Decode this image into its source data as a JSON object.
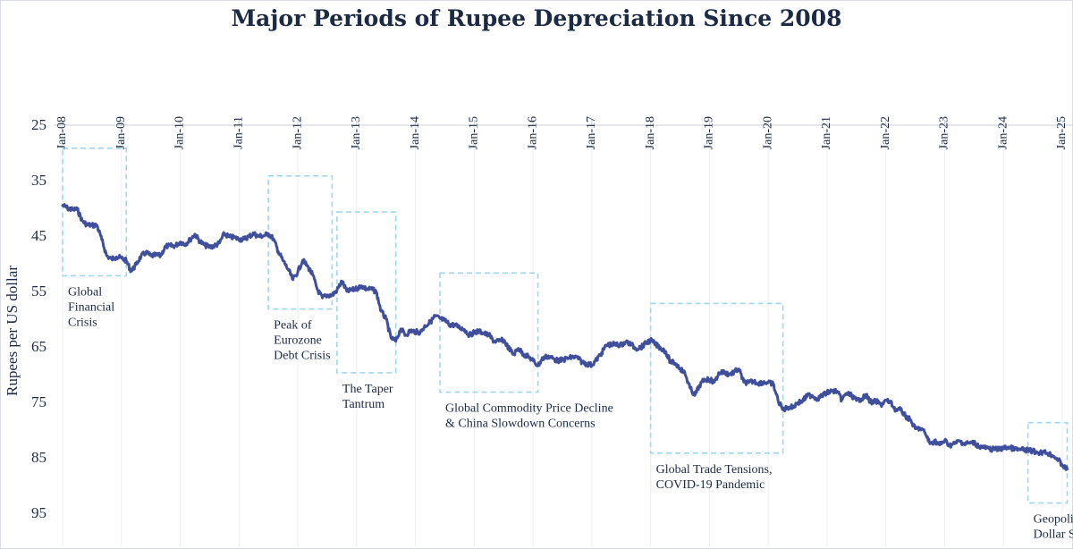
{
  "chart_data": {
    "type": "line",
    "title": "Major Periods of Rupee Depreciation Since 2008",
    "xlabel": "",
    "ylabel": "Rupees per US dollar",
    "x_ticks": [
      "Jan-08",
      "Jan-09",
      "Jan-10",
      "Jan-11",
      "Jan-12",
      "Jan-13",
      "Jan-14",
      "Jan-15",
      "Jan-16",
      "Jan-17",
      "Jan-18",
      "Jan-19",
      "Jan-20",
      "Jan-21",
      "Jan-22",
      "Jan-23",
      "Jan-24",
      "Jan-25"
    ],
    "x_axis_position": "top",
    "y_ticks": [
      25,
      35,
      45,
      55,
      65,
      75,
      85,
      95
    ],
    "ylim": [
      25,
      95
    ],
    "y_inverted": true,
    "grid": "vertical",
    "line_color": "#3f4f9c",
    "box_color": "#9fd7f0",
    "series": [
      {
        "values": [
          [
            "2008-01",
            39.3
          ],
          [
            "2008-02",
            39.8
          ],
          [
            "2008-03",
            40.1
          ],
          [
            "2008-04",
            40.0
          ],
          [
            "2008-05",
            42.1
          ],
          [
            "2008-06",
            42.8
          ],
          [
            "2008-07",
            42.9
          ],
          [
            "2008-08",
            42.9
          ],
          [
            "2008-09",
            45.5
          ],
          [
            "2008-10",
            48.4
          ],
          [
            "2008-11",
            49.0
          ],
          [
            "2008-12",
            48.6
          ],
          [
            "2009-01",
            48.8
          ],
          [
            "2009-02",
            49.3
          ],
          [
            "2009-03",
            51.2
          ],
          [
            "2009-04",
            50.0
          ],
          [
            "2009-05",
            48.5
          ],
          [
            "2009-06",
            47.8
          ],
          [
            "2009-07",
            48.4
          ],
          [
            "2009-08",
            48.3
          ],
          [
            "2009-09",
            48.4
          ],
          [
            "2009-10",
            46.7
          ],
          [
            "2009-11",
            46.6
          ],
          [
            "2009-12",
            46.6
          ],
          [
            "2010-01",
            45.9
          ],
          [
            "2010-02",
            46.3
          ],
          [
            "2010-03",
            45.5
          ],
          [
            "2010-04",
            44.5
          ],
          [
            "2010-05",
            45.8
          ],
          [
            "2010-06",
            46.5
          ],
          [
            "2010-07",
            46.8
          ],
          [
            "2010-08",
            46.6
          ],
          [
            "2010-09",
            46.1
          ],
          [
            "2010-10",
            44.4
          ],
          [
            "2010-11",
            45.0
          ],
          [
            "2010-12",
            45.1
          ],
          [
            "2011-01",
            45.4
          ],
          [
            "2011-02",
            45.4
          ],
          [
            "2011-03",
            44.9
          ],
          [
            "2011-04",
            44.4
          ],
          [
            "2011-05",
            44.9
          ],
          [
            "2011-06",
            44.8
          ],
          [
            "2011-07",
            44.4
          ],
          [
            "2011-08",
            45.3
          ],
          [
            "2011-09",
            47.6
          ],
          [
            "2011-10",
            49.3
          ],
          [
            "2011-11",
            50.8
          ],
          [
            "2011-12",
            52.7
          ],
          [
            "2012-01",
            51.3
          ],
          [
            "2012-02",
            49.2
          ],
          [
            "2012-03",
            50.3
          ],
          [
            "2012-04",
            51.8
          ],
          [
            "2012-05",
            54.5
          ],
          [
            "2012-06",
            56.0
          ],
          [
            "2012-07",
            55.5
          ],
          [
            "2012-08",
            55.5
          ],
          [
            "2012-09",
            54.6
          ],
          [
            "2012-10",
            53.0
          ],
          [
            "2012-11",
            54.8
          ],
          [
            "2012-12",
            54.6
          ],
          [
            "2013-01",
            54.3
          ],
          [
            "2013-02",
            53.8
          ],
          [
            "2013-03",
            54.4
          ],
          [
            "2013-04",
            54.4
          ],
          [
            "2013-05",
            54.9
          ],
          [
            "2013-06",
            58.4
          ],
          [
            "2013-07",
            59.8
          ],
          [
            "2013-08",
            63.2
          ],
          [
            "2013-09",
            63.8
          ],
          [
            "2013-10",
            61.6
          ],
          [
            "2013-11",
            62.7
          ],
          [
            "2013-12",
            61.9
          ],
          [
            "2014-01",
            62.1
          ],
          [
            "2014-02",
            62.2
          ],
          [
            "2014-03",
            61.0
          ],
          [
            "2014-04",
            60.4
          ],
          [
            "2014-05",
            59.3
          ],
          [
            "2014-06",
            59.7
          ],
          [
            "2014-07",
            60.1
          ],
          [
            "2014-08",
            60.8
          ],
          [
            "2014-09",
            60.9
          ],
          [
            "2014-10",
            61.3
          ],
          [
            "2014-11",
            61.7
          ],
          [
            "2014-12",
            62.7
          ],
          [
            "2015-01",
            62.2
          ],
          [
            "2015-02",
            62.0
          ],
          [
            "2015-03",
            62.4
          ],
          [
            "2015-04",
            62.7
          ],
          [
            "2015-05",
            63.8
          ],
          [
            "2015-06",
            63.8
          ],
          [
            "2015-07",
            63.6
          ],
          [
            "2015-08",
            65.0
          ],
          [
            "2015-09",
            66.2
          ],
          [
            "2015-10",
            65.1
          ],
          [
            "2015-11",
            66.1
          ],
          [
            "2015-12",
            66.6
          ],
          [
            "2016-01",
            67.3
          ],
          [
            "2016-02",
            68.2
          ],
          [
            "2016-03",
            66.9
          ],
          [
            "2016-04",
            66.5
          ],
          [
            "2016-05",
            66.9
          ],
          [
            "2016-06",
            67.3
          ],
          [
            "2016-07",
            67.2
          ],
          [
            "2016-08",
            66.9
          ],
          [
            "2016-09",
            66.7
          ],
          [
            "2016-10",
            66.7
          ],
          [
            "2016-11",
            67.6
          ],
          [
            "2016-12",
            67.9
          ],
          [
            "2017-01",
            68.1
          ],
          [
            "2017-02",
            67.1
          ],
          [
            "2017-03",
            65.9
          ],
          [
            "2017-04",
            64.5
          ],
          [
            "2017-05",
            64.4
          ],
          [
            "2017-06",
            64.4
          ],
          [
            "2017-07",
            64.5
          ],
          [
            "2017-08",
            63.9
          ],
          [
            "2017-09",
            64.4
          ],
          [
            "2017-10",
            65.1
          ],
          [
            "2017-11",
            64.9
          ],
          [
            "2017-12",
            64.2
          ],
          [
            "2018-01",
            63.6
          ],
          [
            "2018-02",
            64.4
          ],
          [
            "2018-03",
            65.0
          ],
          [
            "2018-04",
            65.6
          ],
          [
            "2018-05",
            67.5
          ],
          [
            "2018-06",
            67.8
          ],
          [
            "2018-07",
            68.7
          ],
          [
            "2018-08",
            69.6
          ],
          [
            "2018-09",
            72.2
          ],
          [
            "2018-10",
            73.6
          ],
          [
            "2018-11",
            71.8
          ],
          [
            "2018-12",
            70.7
          ],
          [
            "2019-01",
            70.7
          ],
          [
            "2019-02",
            71.2
          ],
          [
            "2019-03",
            69.5
          ],
          [
            "2019-04",
            69.4
          ],
          [
            "2019-05",
            69.8
          ],
          [
            "2019-06",
            69.4
          ],
          [
            "2019-07",
            68.8
          ],
          [
            "2019-08",
            71.2
          ],
          [
            "2019-09",
            71.3
          ],
          [
            "2019-10",
            71.0
          ],
          [
            "2019-11",
            71.4
          ],
          [
            "2019-12",
            71.2
          ],
          [
            "2020-01",
            71.3
          ],
          [
            "2020-02",
            71.5
          ],
          [
            "2020-03",
            74.5
          ],
          [
            "2020-04",
            76.2
          ],
          [
            "2020-05",
            75.7
          ],
          [
            "2020-06",
            75.7
          ],
          [
            "2020-07",
            74.9
          ],
          [
            "2020-08",
            74.6
          ],
          [
            "2020-09",
            73.6
          ],
          [
            "2020-10",
            73.6
          ],
          [
            "2020-11",
            74.2
          ],
          [
            "2020-12",
            73.6
          ],
          [
            "2021-01",
            73.1
          ],
          [
            "2021-02",
            72.8
          ],
          [
            "2021-03",
            72.8
          ],
          [
            "2021-04",
            74.4
          ],
          [
            "2021-05",
            73.2
          ],
          [
            "2021-06",
            73.6
          ],
          [
            "2021-07",
            74.5
          ],
          [
            "2021-08",
            74.2
          ],
          [
            "2021-09",
            73.6
          ],
          [
            "2021-10",
            74.9
          ],
          [
            "2021-11",
            74.6
          ],
          [
            "2021-12",
            75.3
          ],
          [
            "2022-01",
            74.5
          ],
          [
            "2022-02",
            74.9
          ],
          [
            "2022-03",
            76.2
          ],
          [
            "2022-04",
            76.2
          ],
          [
            "2022-05",
            77.3
          ],
          [
            "2022-06",
            78.0
          ],
          [
            "2022-07",
            79.6
          ],
          [
            "2022-08",
            79.5
          ],
          [
            "2022-09",
            80.3
          ],
          [
            "2022-10",
            82.3
          ],
          [
            "2022-11",
            81.8
          ],
          [
            "2022-12",
            82.5
          ],
          [
            "2023-01",
            81.7
          ],
          [
            "2023-02",
            82.6
          ],
          [
            "2023-03",
            82.3
          ],
          [
            "2023-04",
            81.8
          ],
          [
            "2023-05",
            82.3
          ],
          [
            "2023-06",
            82.2
          ],
          [
            "2023-07",
            82.1
          ],
          [
            "2023-08",
            82.8
          ],
          [
            "2023-09",
            83.0
          ],
          [
            "2023-10",
            83.2
          ],
          [
            "2023-11",
            83.3
          ],
          [
            "2023-12",
            83.3
          ],
          [
            "2024-01",
            83.1
          ],
          [
            "2024-02",
            82.9
          ],
          [
            "2024-03",
            83.2
          ],
          [
            "2024-04",
            83.4
          ],
          [
            "2024-05",
            83.4
          ],
          [
            "2024-06",
            83.5
          ],
          [
            "2024-07",
            83.6
          ],
          [
            "2024-08",
            83.9
          ],
          [
            "2024-09",
            83.8
          ],
          [
            "2024-10",
            84.0
          ],
          [
            "2024-11",
            84.4
          ],
          [
            "2024-12",
            85.0
          ],
          [
            "2025-01",
            86.2
          ],
          [
            "2025-02",
            86.9
          ]
        ]
      }
    ],
    "annotations": [
      {
        "text": [
          "Global",
          "Financial",
          "Crisis"
        ],
        "from": "2008-01",
        "to": "2009-02",
        "ymin": 29,
        "ymax": 52
      },
      {
        "text": [
          "Peak of",
          "Eurozone",
          "Debt Crisis"
        ],
        "from": "2011-07",
        "to": "2012-08",
        "ymin": 34,
        "ymax": 58
      },
      {
        "text": [
          "The Taper",
          "Tantrum"
        ],
        "from": "2012-09",
        "to": "2013-09",
        "ymin": 40.5,
        "ymax": 69.5
      },
      {
        "text": [
          "Global Commodity Price Decline",
          "& China Slowdown Concerns"
        ],
        "from": "2014-06",
        "to": "2016-02",
        "ymin": 51.5,
        "ymax": 73
      },
      {
        "text": [
          "Global Trade Tensions,",
          "COVID-19 Pandemic"
        ],
        "from": "2018-01",
        "to": "2020-04",
        "ymin": 57,
        "ymax": 84
      },
      {
        "text": [
          "Geopolitical Tensions,",
          "Dollar Strength"
        ],
        "from": "2024-06",
        "to": "2025-02",
        "ymin": 78.5,
        "ymax": 93
      }
    ]
  }
}
